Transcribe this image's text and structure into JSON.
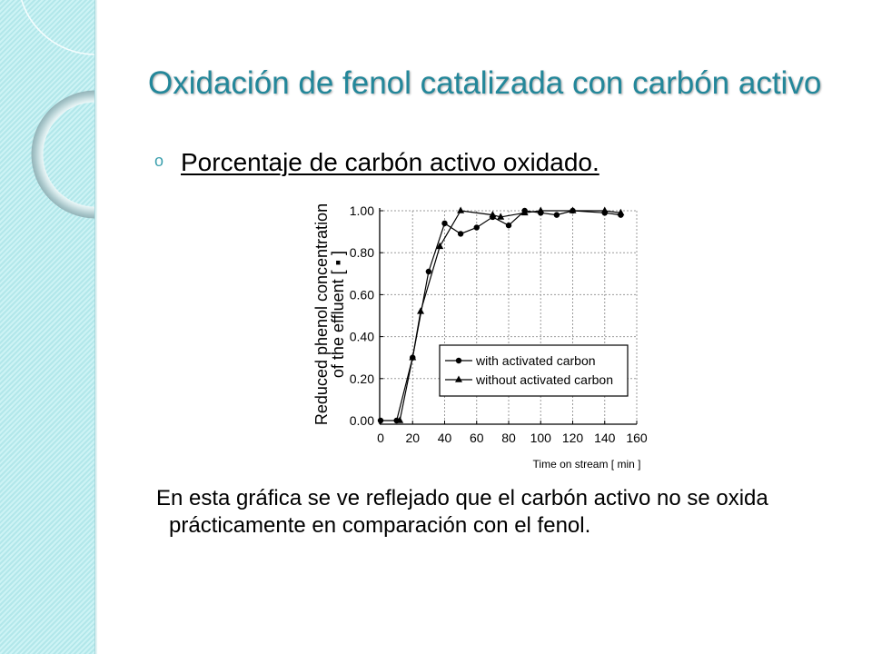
{
  "slide": {
    "title": "Oxidación de fenol catalizada con carbón activo",
    "bullet_marker": "o",
    "bullet_text": "Porcentaje de carbón activo oxidado.",
    "paragraph": "En esta gráfica se ve reflejado que el carbón activo no se oxida prácticamente en comparación con el fenol."
  },
  "colors": {
    "title": "#23879a",
    "bullet_marker": "#3b9fad",
    "body_text": "#000000",
    "side_strip": "#bff0f2",
    "chart_ink": "#000000",
    "grid": "#9b9b9b"
  },
  "chart_data": {
    "type": "line",
    "xlabel": "Time on stream [ min ]",
    "ylabel": [
      "Reduced phenol concentration",
      "of the effluent [ ▪ ]"
    ],
    "xlim": [
      0,
      160
    ],
    "ylim": [
      0,
      1
    ],
    "xticks": [
      0,
      20,
      40,
      60,
      80,
      100,
      120,
      140,
      160
    ],
    "xtick_labels": [
      "0",
      "20",
      "40",
      "60",
      "80",
      "100",
      "120",
      "140",
      "160"
    ],
    "yticks": [
      0,
      0.2,
      0.4,
      0.6,
      0.8,
      1.0
    ],
    "ytick_labels": [
      "0.00",
      "0.20",
      "0.40",
      "0.60",
      "0.80",
      "1.00"
    ],
    "grid": true,
    "legend_position": "lower-right",
    "series": [
      {
        "name": "with activated carbon",
        "marker": "circle",
        "x": [
          0,
          10,
          20,
          30,
          40,
          50,
          60,
          70,
          80,
          90,
          100,
          110,
          120,
          140,
          150
        ],
        "y": [
          0.0,
          0.0,
          0.3,
          0.71,
          0.94,
          0.89,
          0.92,
          0.97,
          0.93,
          1.0,
          0.99,
          0.98,
          1.0,
          0.99,
          0.98
        ]
      },
      {
        "name": "without activated carbon",
        "marker": "triangle",
        "x": [
          12,
          20,
          25,
          37,
          50,
          70,
          75,
          90,
          100,
          120,
          140,
          150
        ],
        "y": [
          0.0,
          0.3,
          0.52,
          0.83,
          1.0,
          0.98,
          0.97,
          0.99,
          1.0,
          1.0,
          1.0,
          0.99
        ]
      }
    ]
  }
}
